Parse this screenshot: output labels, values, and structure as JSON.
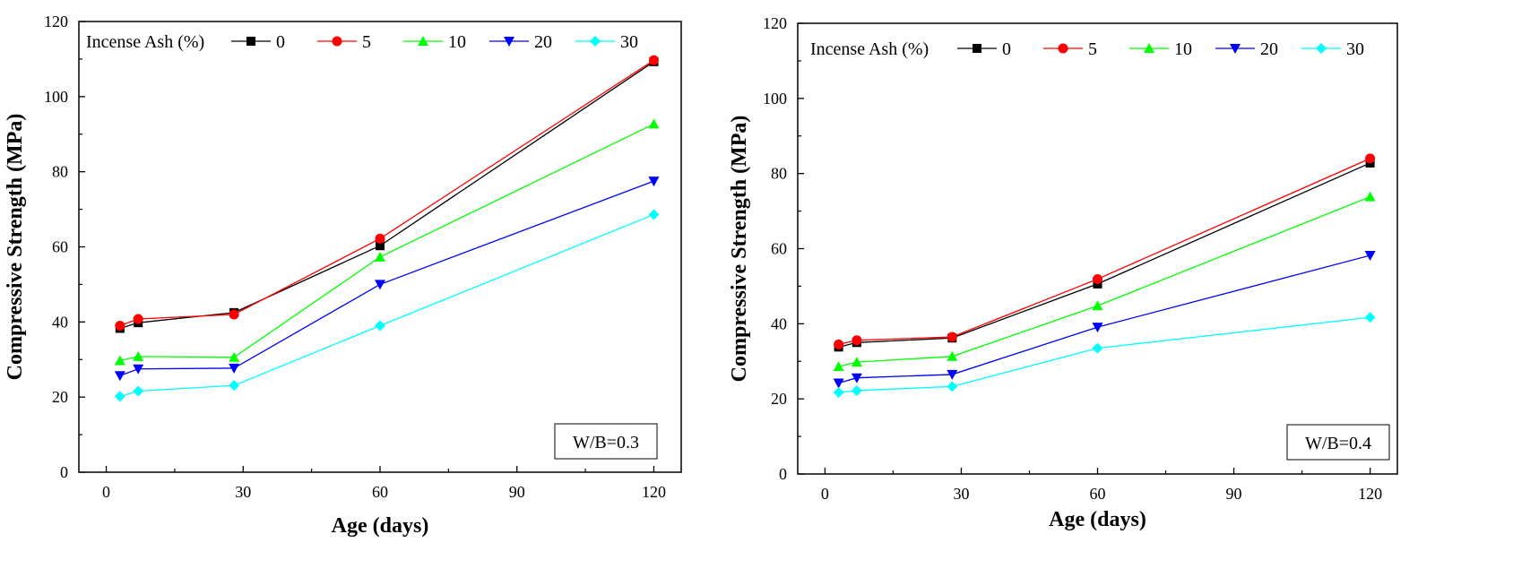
{
  "chart_data": [
    {
      "type": "line",
      "xlabel": "Age (days)",
      "ylabel": "Compressive Strength (MPa)",
      "xlim": [
        -6,
        126
      ],
      "ylim": [
        0,
        120
      ],
      "xticks": [
        0,
        30,
        60,
        90,
        120
      ],
      "yticks": [
        0,
        20,
        40,
        60,
        80,
        100,
        120
      ],
      "legend_title": "Incense Ash (%)",
      "legend_placement": "top-left",
      "annotation": "W/B=0.3",
      "x": [
        3,
        7,
        28,
        60,
        120
      ],
      "series": [
        {
          "name": "0",
          "color": "#000000",
          "marker": "square",
          "values": [
            38.3,
            39.8,
            42.5,
            60.3,
            109.3
          ]
        },
        {
          "name": "5",
          "color": "#ff0000",
          "marker": "circle",
          "values": [
            39.0,
            40.8,
            42.0,
            62.2,
            109.7
          ]
        },
        {
          "name": "10",
          "color": "#00ff00",
          "marker": "triangle-up",
          "values": [
            29.7,
            30.8,
            30.6,
            57.3,
            92.7
          ]
        },
        {
          "name": "20",
          "color": "#0000ff",
          "marker": "triangle-down",
          "values": [
            25.7,
            27.5,
            27.7,
            50.0,
            77.5
          ]
        },
        {
          "name": "30",
          "color": "#00ffff",
          "marker": "diamond",
          "values": [
            20.2,
            21.6,
            23.1,
            39.0,
            68.6
          ]
        }
      ]
    },
    {
      "type": "line",
      "xlabel": "Age (days)",
      "ylabel": "Compressive Strength (MPa)",
      "xlim": [
        -6,
        126
      ],
      "ylim": [
        0,
        120
      ],
      "xticks": [
        0,
        30,
        60,
        90,
        120
      ],
      "yticks": [
        0,
        20,
        40,
        60,
        80,
        100,
        120
      ],
      "legend_title": "Incense Ash (%)",
      "legend_placement": "top-left",
      "annotation": "W/B=0.4",
      "x": [
        3,
        7,
        28,
        60,
        120
      ],
      "series": [
        {
          "name": "0",
          "color": "#000000",
          "marker": "square",
          "values": [
            33.8,
            35.0,
            36.2,
            50.6,
            82.8
          ]
        },
        {
          "name": "5",
          "color": "#ff0000",
          "marker": "circle",
          "values": [
            34.5,
            35.6,
            36.5,
            51.9,
            84.0
          ]
        },
        {
          "name": "10",
          "color": "#00ff00",
          "marker": "triangle-up",
          "values": [
            28.6,
            29.8,
            31.3,
            44.8,
            73.8
          ]
        },
        {
          "name": "20",
          "color": "#0000ff",
          "marker": "triangle-down",
          "values": [
            24.2,
            25.6,
            26.5,
            39.1,
            58.2
          ]
        },
        {
          "name": "30",
          "color": "#00ffff",
          "marker": "diamond",
          "values": [
            21.7,
            22.2,
            23.3,
            33.5,
            41.7
          ]
        }
      ]
    }
  ]
}
